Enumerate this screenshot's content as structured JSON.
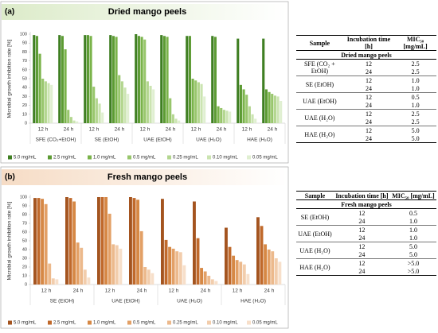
{
  "chart_data": [
    {
      "type": "bar",
      "panel_label": "(a)",
      "title": "Dried mango peels",
      "ylabel": "Microbial growth inhibition rate [%]",
      "categories": [
        "12 h",
        "24 h",
        "12 h",
        "24 h",
        "12 h",
        "24 h",
        "12 h",
        "24 h",
        "12 h",
        "24 h"
      ],
      "groups": [
        "SFE (CO₂+EtOH)",
        "SE (EtOH)",
        "UAE (EtOH)",
        "UAE (H₂O)",
        "HAE (H₂O)"
      ],
      "ylim": [
        0,
        100
      ],
      "yticks": [
        0,
        10,
        20,
        30,
        40,
        50,
        60,
        70,
        80,
        90,
        100
      ],
      "series": [
        {
          "name": "5.0 mg/mL",
          "color": "#3f7f22",
          "values": [
            99,
            99,
            99,
            99,
            100,
            99,
            98,
            98,
            95,
            95
          ]
        },
        {
          "name": "2.5 mg/mL",
          "color": "#5c9b33",
          "values": [
            98,
            98,
            99,
            98,
            98,
            98,
            98,
            97,
            43,
            38
          ]
        },
        {
          "name": "1.0 mg/mL",
          "color": "#7ab34a",
          "values": [
            78,
            83,
            98,
            97,
            97,
            97,
            50,
            19,
            38,
            35
          ]
        },
        {
          "name": "0.5 mg/mL",
          "color": "#98c66c",
          "values": [
            50,
            15,
            41,
            54,
            94,
            28,
            48,
            17,
            32,
            33
          ]
        },
        {
          "name": "0.25 mg/mL",
          "color": "#b3d68f",
          "values": [
            47,
            7,
            28,
            47,
            47,
            10,
            46,
            15,
            19,
            31
          ]
        },
        {
          "name": "0.10 mg/mL",
          "color": "#cbe4b1",
          "values": [
            45,
            3,
            22,
            40,
            42,
            5,
            44,
            14,
            10,
            30
          ]
        },
        {
          "name": "0.05 mg/mL",
          "color": "#e0efd1",
          "values": [
            43,
            2,
            12,
            33,
            38,
            3,
            30,
            13,
            5,
            25
          ]
        }
      ]
    },
    {
      "type": "bar",
      "panel_label": "(b)",
      "title": "Fresh mango peels",
      "ylabel": "Microbial growth inhibition rate [%]",
      "categories": [
        "12 h",
        "24 h",
        "12 h",
        "24 h",
        "12 h",
        "24 h",
        "12 h",
        "24 h"
      ],
      "groups": [
        "SE (EtOH)",
        "UAE (EtOH)",
        "UAE (H₂O)",
        "HAE (H₂O)"
      ],
      "ylim": [
        0,
        100
      ],
      "yticks": [
        0,
        10,
        20,
        30,
        40,
        50,
        60,
        70,
        80,
        90,
        100
      ],
      "series": [
        {
          "name": "5.0 mg/mL",
          "color": "#a4541f",
          "values": [
            99,
            100,
            100,
            100,
            98,
            95,
            65,
            77
          ]
        },
        {
          "name": "2.5 mg/mL",
          "color": "#c0692b",
          "values": [
            99,
            99,
            100,
            99,
            51,
            53,
            43,
            67
          ]
        },
        {
          "name": "1.0 mg/mL",
          "color": "#d68845",
          "values": [
            98,
            95,
            100,
            97,
            43,
            19,
            33,
            46
          ]
        },
        {
          "name": "0.5 mg/mL",
          "color": "#e3a066",
          "values": [
            92,
            48,
            81,
            61,
            41,
            15,
            28,
            40
          ]
        },
        {
          "name": "0.25 mg/mL",
          "color": "#ecb98c",
          "values": [
            24,
            42,
            46,
            20,
            38,
            10,
            26,
            38
          ]
        },
        {
          "name": "0.10 mg/mL",
          "color": "#f2cdac",
          "values": [
            7,
            17,
            45,
            17,
            37,
            6,
            23,
            30
          ]
        },
        {
          "name": "0.05 mg/mL",
          "color": "#f7dfca",
          "values": [
            6,
            8,
            41,
            13,
            22,
            4,
            12,
            26
          ]
        }
      ]
    }
  ],
  "tables": [
    {
      "header": [
        "Sample",
        "Incubation time [h]",
        "MIC₅₀ [mg/mL]"
      ],
      "subheader": "Dried mango peels",
      "groups": [
        {
          "sample": "SFE (CO₂ + EtOH)",
          "rows": [
            [
              "12",
              "2.5"
            ],
            [
              "24",
              "2.5"
            ]
          ]
        },
        {
          "sample": "SE (EtOH)",
          "rows": [
            [
              "12",
              "1.0"
            ],
            [
              "24",
              "1.0"
            ]
          ]
        },
        {
          "sample": "UAE (EtOH)",
          "rows": [
            [
              "12",
              "0.5"
            ],
            [
              "24",
              "1.0"
            ]
          ]
        },
        {
          "sample": "UAE (H₂O)",
          "rows": [
            [
              "12",
              "2.5"
            ],
            [
              "24",
              "2.5"
            ]
          ]
        },
        {
          "sample": "HAE (H₂O)",
          "rows": [
            [
              "12",
              "5.0"
            ],
            [
              "24",
              "5.0"
            ]
          ]
        }
      ]
    },
    {
      "header": [
        "Sample",
        "Incubation time [h]",
        "MIC₅₀ [mg/mL]"
      ],
      "subheader": "Fresh mango peels",
      "groups": [
        {
          "sample": "SE (EtOH)",
          "rows": [
            [
              "12",
              "0.5"
            ],
            [
              "24",
              "1.0"
            ]
          ]
        },
        {
          "sample": "UAE (EtOH)",
          "rows": [
            [
              "12",
              "1.0"
            ],
            [
              "24",
              "1.0"
            ]
          ]
        },
        {
          "sample": "UAE (H₂O)",
          "rows": [
            [
              "12",
              "5.0"
            ],
            [
              "24",
              "5.0"
            ]
          ]
        },
        {
          "sample": "HAE (H₂O)",
          "rows": [
            [
              "12",
              ">5.0"
            ],
            [
              "24",
              ">5.0"
            ]
          ]
        }
      ]
    }
  ]
}
